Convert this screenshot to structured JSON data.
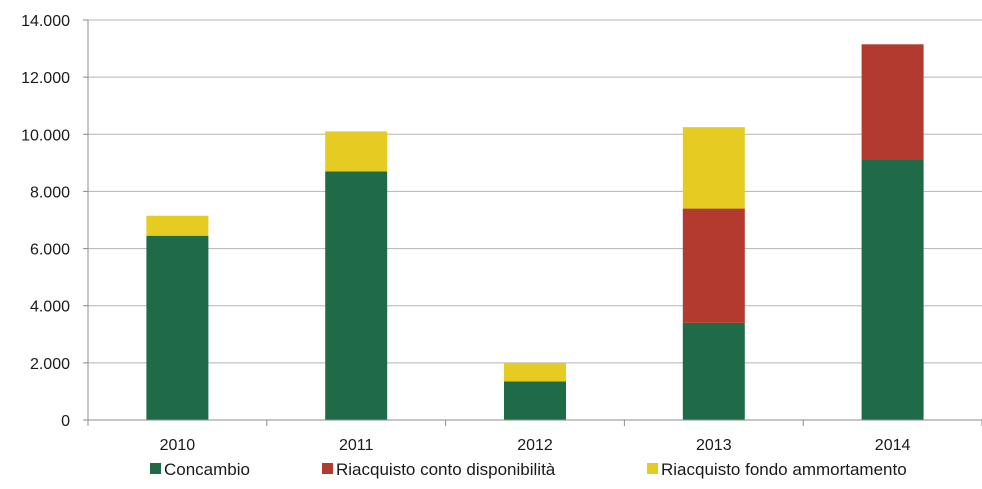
{
  "chart_data": {
    "type": "bar",
    "stacked": true,
    "categories": [
      "2010",
      "2011",
      "2012",
      "2013",
      "2014"
    ],
    "series": [
      {
        "name": "Concambio",
        "color": "#1f6b48",
        "values": [
          6450,
          8700,
          1350,
          3400,
          9100
        ]
      },
      {
        "name": "Riacquisto conto disponibilità",
        "color": "#b23a2e",
        "values": [
          0,
          0,
          0,
          4000,
          4050
        ]
      },
      {
        "name": "Riacquisto fondo ammortamento",
        "color": "#e6cc22",
        "values": [
          700,
          1400,
          650,
          2850,
          0
        ]
      }
    ],
    "ylim": [
      0,
      14000
    ],
    "y_ticks": [
      "0",
      "2.000",
      "4.000",
      "6.000",
      "8.000",
      "10.000",
      "12.000",
      "14.000"
    ],
    "grid": true,
    "legend_position": "bottom"
  }
}
